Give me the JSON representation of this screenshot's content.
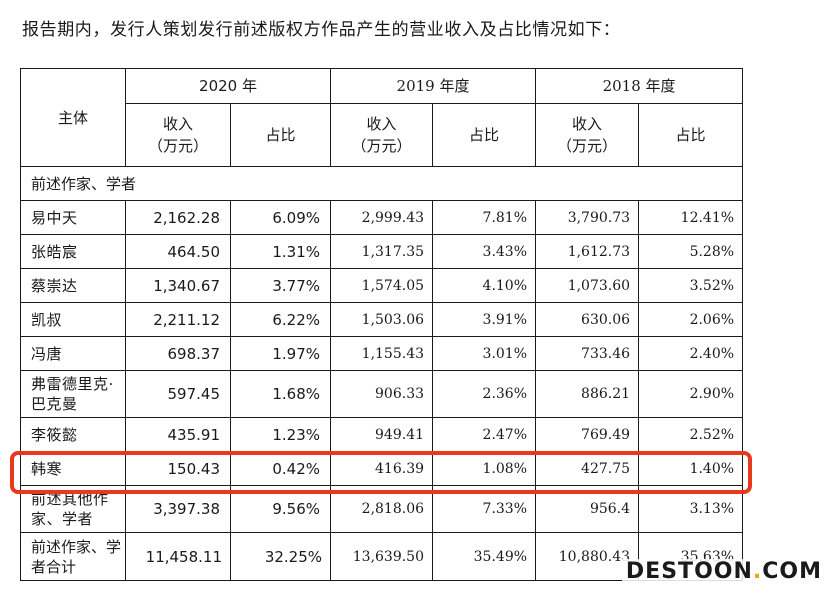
{
  "intro_text": "报告期内，发行人策划发行前述版权方作品产生的营业收入及占比情况如下：",
  "header": {
    "subject": "主体",
    "years": [
      "2020 年",
      "2019 年度",
      "2018 年度"
    ],
    "revenue_2020": "收入\n（万元）",
    "share": "占比",
    "revenue": "收入\n（万元）"
  },
  "group_label": "前述作家、学者",
  "rows": [
    {
      "name": "易中天",
      "v2020": "2,162.28",
      "p2020": "6.09%",
      "v2019": "2,999.43",
      "p2019": "7.81%",
      "v2018": "3,790.73",
      "p2018": "12.41%"
    },
    {
      "name": "张皓宸",
      "v2020": "464.50",
      "p2020": "1.31%",
      "v2019": "1,317.35",
      "p2019": "3.43%",
      "v2018": "1,612.73",
      "p2018": "5.28%"
    },
    {
      "name": "蔡崇达",
      "v2020": "1,340.67",
      "p2020": "3.77%",
      "v2019": "1,574.05",
      "p2019": "4.10%",
      "v2018": "1,073.60",
      "p2018": "3.52%"
    },
    {
      "name": "凯叔",
      "v2020": "2,211.12",
      "p2020": "6.22%",
      "v2019": "1,503.06",
      "p2019": "3.91%",
      "v2018": "630.06",
      "p2018": "2.06%"
    },
    {
      "name": "冯唐",
      "v2020": "698.37",
      "p2020": "1.97%",
      "v2019": "1,155.43",
      "p2019": "3.01%",
      "v2018": "733.46",
      "p2018": "2.40%"
    },
    {
      "name": "弗雷德里克·巴克曼",
      "v2020": "597.45",
      "p2020": "1.68%",
      "v2019": "906.33",
      "p2019": "2.36%",
      "v2018": "886.21",
      "p2018": "2.90%"
    },
    {
      "name": "李筱懿",
      "v2020": "435.91",
      "p2020": "1.23%",
      "v2019": "949.41",
      "p2019": "2.47%",
      "v2018": "769.49",
      "p2018": "2.52%"
    },
    {
      "name": "韩寒",
      "v2020": "150.43",
      "p2020": "0.42%",
      "v2019": "416.39",
      "p2019": "1.08%",
      "v2018": "427.75",
      "p2018": "1.40%"
    },
    {
      "name": "前述其他作家、学者",
      "v2020": "3,397.38",
      "p2020": "9.56%",
      "v2019": "2,818.06",
      "p2019": "7.33%",
      "v2018": "956.4",
      "p2018": "3.13%"
    }
  ],
  "total": {
    "name": "前述作家、学者合计",
    "v2020": "11,458.11",
    "p2020": "32.25%",
    "v2019": "13,639.50",
    "p2019": "35.49%",
    "v2018": "10,880.43",
    "p2018": "35.63%"
  },
  "highlight_color": "#e8391c",
  "watermark": {
    "main": "DESTOON",
    "dot": ".",
    "suffix": "COM"
  }
}
